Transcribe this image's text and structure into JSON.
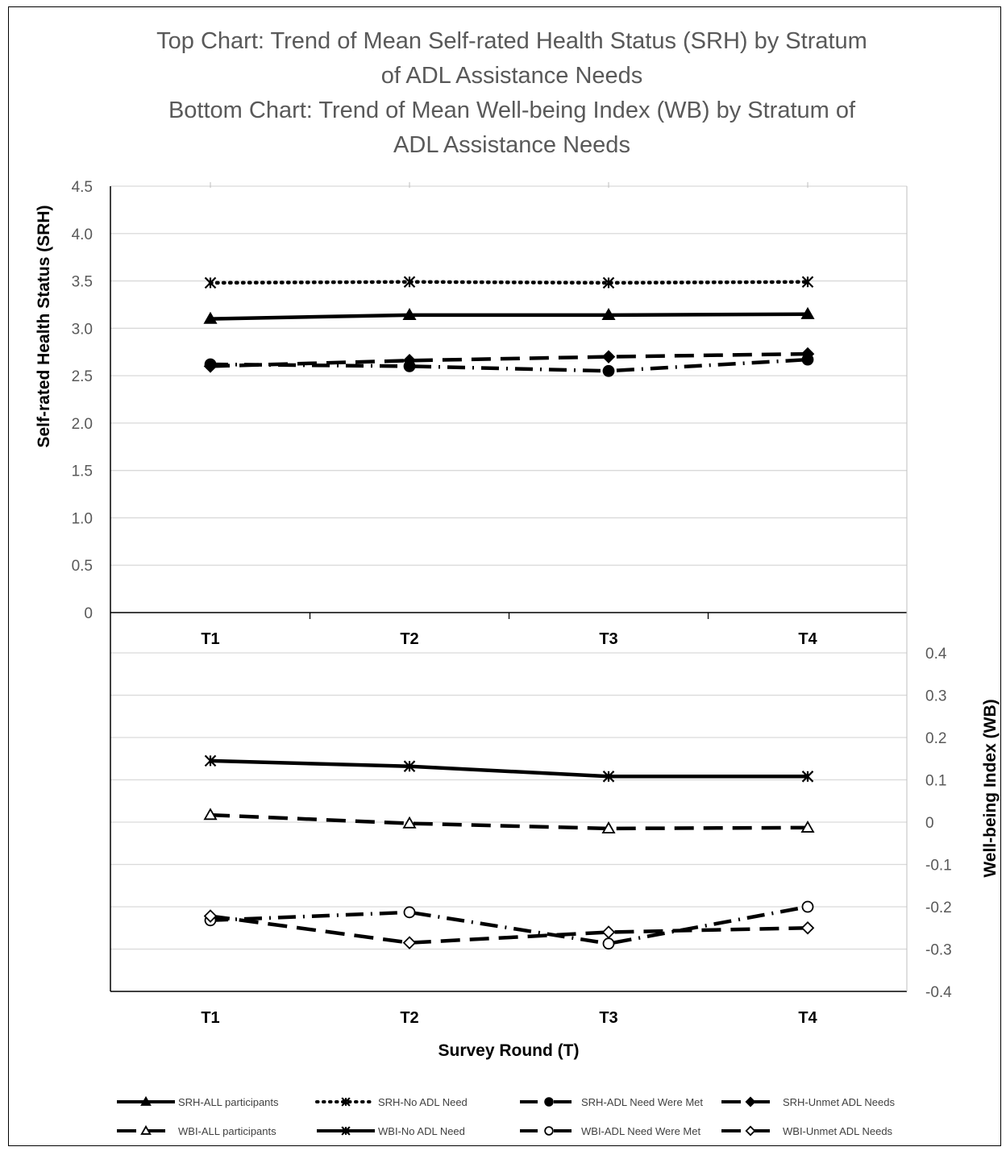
{
  "title_lines": [
    "Top Chart: Trend of Mean Self-rated Health Status (SRH) by Stratum",
    "of ADL Assistance Needs",
    "Bottom Chart: Trend of Mean Well-being Index (WB) by Stratum  of",
    "ADL Assistance Needs"
  ],
  "chart_data": [
    {
      "type": "line",
      "categories": [
        "T1",
        "T2",
        "T3",
        "T4"
      ],
      "ylabel": "Self-rated Health Status (SRH)",
      "ylim": [
        0,
        4.5
      ],
      "yticks": [
        "0",
        "0.5",
        "1.0",
        "1.5",
        "2.0",
        "2.5",
        "3.0",
        "3.5",
        "4.0",
        "4.5"
      ],
      "grid": true,
      "series": [
        {
          "name": "SRH-ALL participants",
          "values": [
            3.1,
            3.14,
            3.14,
            3.15
          ],
          "dash": "solid",
          "marker": "triangle-filled",
          "color": "#000000"
        },
        {
          "name": "SRH-No ADL Need",
          "values": [
            3.48,
            3.49,
            3.48,
            3.49
          ],
          "dash": "dotted",
          "marker": "asterisk",
          "color": "#000000"
        },
        {
          "name": "SRH-ADL Need Were Met",
          "values": [
            2.62,
            2.6,
            2.55,
            2.67
          ],
          "dash": "dashdot",
          "marker": "circle-filled",
          "color": "#000000"
        },
        {
          "name": "SRH-Unmet ADL Needs",
          "values": [
            2.6,
            2.66,
            2.7,
            2.73
          ],
          "dash": "dashed",
          "marker": "diamond-filled",
          "color": "#000000"
        }
      ]
    },
    {
      "type": "line",
      "categories": [
        "T1",
        "T2",
        "T3",
        "T4"
      ],
      "xlabel": "Survey Round (T)",
      "ylabel": "Well-being Index (WB)",
      "ylim": [
        -0.4,
        0.4
      ],
      "yticks": [
        "-0.4",
        "-0.3",
        "-0.2",
        "-0.1",
        "0",
        "0.1",
        "0.2",
        "0.3",
        "0.4"
      ],
      "grid": true,
      "series": [
        {
          "name": "WBI-ALL participants",
          "values": [
            0.017,
            -0.003,
            -0.015,
            -0.013
          ],
          "dash": "dashed",
          "marker": "triangle-open",
          "color": "#000000"
        },
        {
          "name": "WBI-No ADL Need",
          "values": [
            0.145,
            0.132,
            0.108,
            0.108
          ],
          "dash": "solid",
          "marker": "asterisk",
          "color": "#000000"
        },
        {
          "name": "WBI-ADL Need Were Met",
          "values": [
            -0.232,
            -0.213,
            -0.287,
            -0.2
          ],
          "dash": "dashdot",
          "marker": "circle-open",
          "color": "#000000"
        },
        {
          "name": "WBI-Unmet ADL Needs",
          "values": [
            -0.222,
            -0.285,
            -0.26,
            -0.25
          ],
          "dash": "dashed",
          "marker": "diamond-open",
          "color": "#000000"
        }
      ]
    }
  ],
  "legend_rows": [
    [
      "SRH-ALL participants",
      "SRH-No ADL Need",
      "SRH-ADL Need Were Met",
      "SRH-Unmet ADL Needs"
    ],
    [
      "WBI-ALL participants",
      "WBI-No ADL Need",
      "WBI-ADL Need Were Met",
      "WBI-Unmet ADL Needs"
    ]
  ],
  "colors": {
    "line": "#000000",
    "grid": "#d9d9d9",
    "axis_text": "#595959"
  }
}
